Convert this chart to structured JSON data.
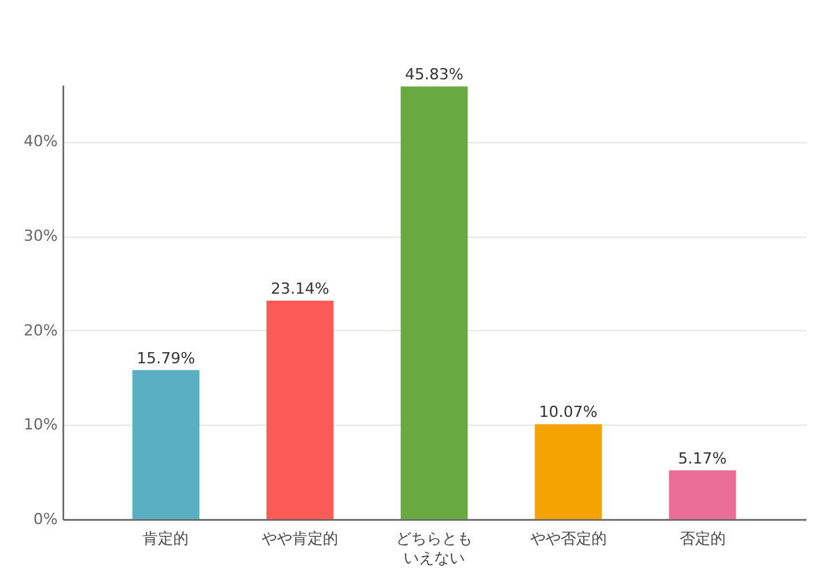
{
  "chart_data": {
    "type": "bar",
    "categories": [
      "肯定的",
      "やや肯定的",
      "どちらともいえない",
      "やや否定的",
      "否定的"
    ],
    "values": [
      15.79,
      23.14,
      45.83,
      10.07,
      5.17
    ],
    "colors": [
      "#5aafc2",
      "#fb5a57",
      "#69a941",
      "#f4a300",
      "#ea6e98"
    ],
    "value_labels": [
      "15.79%",
      "23.14%",
      "45.83%",
      "10.07%",
      "5.17%"
    ],
    "ylim": [
      0,
      46
    ],
    "yticks": [
      {
        "value": 0,
        "label": "0%"
      },
      {
        "value": 10,
        "label": "10%"
      },
      {
        "value": 20,
        "label": "20%"
      },
      {
        "value": 30,
        "label": "30%"
      },
      {
        "value": 40,
        "label": "40%"
      }
    ],
    "grid": "y"
  }
}
